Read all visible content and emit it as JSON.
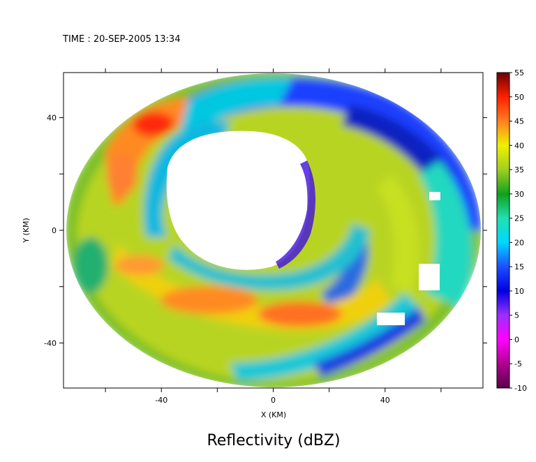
{
  "chart_data": {
    "type": "heatmap",
    "title": "TIME : 20-SEP-2005 13:34",
    "caption": "Reflectivity (dBZ)",
    "xlabel": "X (KM)",
    "ylabel": "Y (KM)",
    "xlim": [
      -75,
      75
    ],
    "ylim": [
      -56,
      56
    ],
    "x_ticks": [
      -40,
      0,
      40
    ],
    "y_ticks": [
      -40,
      0,
      40
    ],
    "colorbar": {
      "label": "dBZ",
      "range": [
        -10,
        55
      ],
      "ticks": [
        55,
        50,
        45,
        40,
        35,
        30,
        25,
        20,
        15,
        10,
        5,
        0,
        -5,
        -10
      ],
      "stops": [
        {
          "v": -10,
          "c": "#5a004a"
        },
        {
          "v": -5,
          "c": "#b0008f"
        },
        {
          "v": 0,
          "c": "#ff00ff"
        },
        {
          "v": 5,
          "c": "#9b30ff"
        },
        {
          "v": 10,
          "c": "#0000e0"
        },
        {
          "v": 15,
          "c": "#1e50ff"
        },
        {
          "v": 20,
          "c": "#00d8ff"
        },
        {
          "v": 25,
          "c": "#20e0b0"
        },
        {
          "v": 30,
          "c": "#10a020"
        },
        {
          "v": 35,
          "c": "#a0d020"
        },
        {
          "v": 40,
          "c": "#f0f000"
        },
        {
          "v": 45,
          "c": "#ff8020"
        },
        {
          "v": 50,
          "c": "#ff2000"
        },
        {
          "v": 55,
          "c": "#6a0000"
        }
      ]
    },
    "data_coverage": {
      "shape": "annulus",
      "outer_radius_km": [
        73,
        55
      ],
      "inner_radius_km": 20
    },
    "eyewall_features": [
      {
        "x": -38,
        "y": 42,
        "dbz": 50
      },
      {
        "x": -25,
        "y": -30,
        "dbz": 45
      },
      {
        "x": 10,
        "y": -32,
        "dbz": 45
      },
      {
        "x": 35,
        "y": 10,
        "dbz": 38
      },
      {
        "x": 10,
        "y": 45,
        "dbz": 12
      },
      {
        "x": 50,
        "y": -30,
        "dbz": 20
      }
    ]
  }
}
